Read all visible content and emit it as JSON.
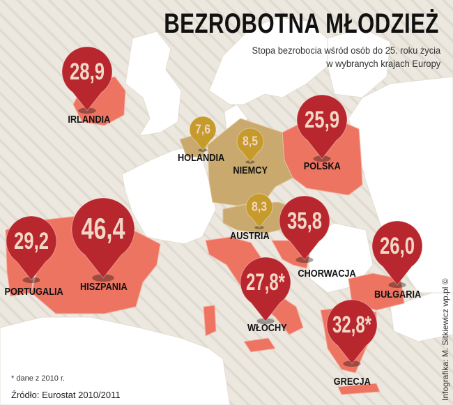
{
  "header": {
    "title": "BEZROBOTNA MŁODZIEŻ",
    "subtitle_line1": "Stopa bezrobocia wśród osób do 25. roku życia",
    "subtitle_line2": "w wybranych krajach Europy"
  },
  "markers": [
    {
      "id": "ie",
      "country": "IRLANDIA",
      "value": "28,9",
      "kind": "red"
    },
    {
      "id": "pl",
      "country": "POLSKA",
      "value": "25,9",
      "kind": "red"
    },
    {
      "id": "nl",
      "country": "HOLANDIA",
      "value": "7,6",
      "kind": "gold"
    },
    {
      "id": "de",
      "country": "NIEMCY",
      "value": "8,5",
      "kind": "gold"
    },
    {
      "id": "at",
      "country": "AUSTRIA",
      "value": "8,3",
      "kind": "gold"
    },
    {
      "id": "hr",
      "country": "CHORWACJA",
      "value": "35,8",
      "kind": "red"
    },
    {
      "id": "pt",
      "country": "PORTUGALIA",
      "value": "29,2",
      "kind": "red"
    },
    {
      "id": "es",
      "country": "HISZPANIA",
      "value": "46,4",
      "kind": "red"
    },
    {
      "id": "it",
      "country": "WŁOCHY",
      "value": "27,8*",
      "kind": "red"
    },
    {
      "id": "bg",
      "country": "BUŁGARIA",
      "value": "26,0",
      "kind": "red"
    },
    {
      "id": "gr",
      "country": "GRECJA",
      "value": "32,8*",
      "kind": "red"
    }
  ],
  "footer": {
    "note": "* dane z 2010 r.",
    "source": "Źródło: Eurostat 2010/2011",
    "credit": "Infografika: M. Sitkiewicz wp.pl ©"
  },
  "colors": {
    "background": "#f1efe9",
    "land": "#ffffff",
    "highlight_red": "#ee7462",
    "highlight_gold": "#c9a96e",
    "pin_red": "#b8262e",
    "pin_gold": "#c69a2b",
    "pin_text": "#f3d7c6"
  }
}
